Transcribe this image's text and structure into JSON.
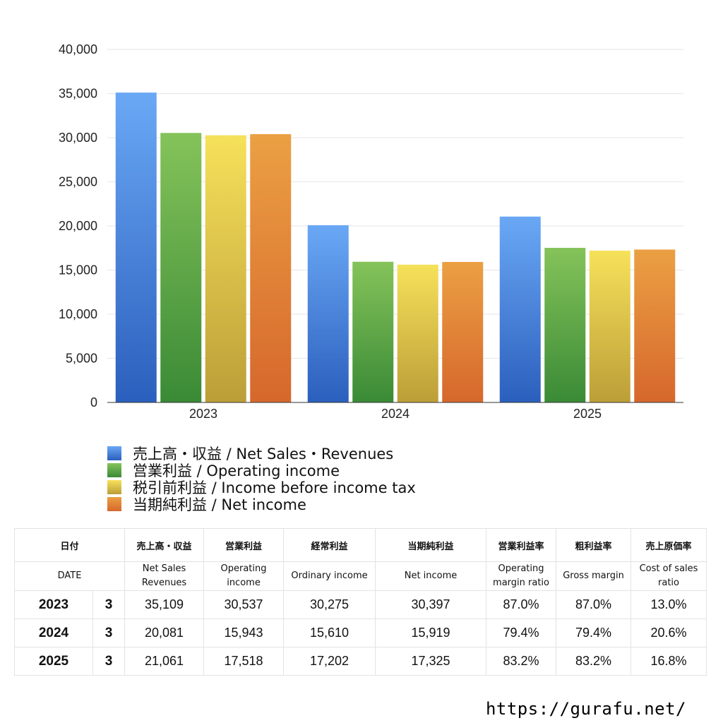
{
  "chart_data": {
    "type": "bar",
    "categories": [
      "2023",
      "2024",
      "2025"
    ],
    "series": [
      {
        "name": "売上高・収益 / Net Sales・Revenues",
        "values": [
          35109,
          20081,
          21061
        ],
        "color_top": "#6aa8f5",
        "color_bottom": "#2b5fbd"
      },
      {
        "name": "営業利益 / Operating income",
        "values": [
          30537,
          15943,
          17518
        ],
        "color_top": "#85c35a",
        "color_bottom": "#3a8a36"
      },
      {
        "name": "税引前利益 / Income before income tax",
        "values": [
          30275,
          15610,
          17202
        ],
        "color_top": "#f6e15a",
        "color_bottom": "#bc9e38"
      },
      {
        "name": "当期純利益 / Net income",
        "values": [
          30397,
          15919,
          17325
        ],
        "color_top": "#eba043",
        "color_bottom": "#d6672c"
      }
    ],
    "yticks": [
      "0",
      "5,000",
      "10,000",
      "15,000",
      "20,000",
      "25,000",
      "30,000",
      "35,000",
      "40,000"
    ],
    "ylim": [
      0,
      40000
    ],
    "grid": true,
    "legend_position": "bottom-left"
  },
  "table": {
    "header_jp": [
      "日付",
      "売上高・収益",
      "営業利益",
      "経常利益",
      "当期純利益",
      "営業利益率",
      "粗利益率",
      "売上原価率"
    ],
    "header_en": [
      "DATE",
      "Net Sales\nRevenues",
      "Operating\nincome",
      "Ordinary income",
      "Net income",
      "Operating\nmargin ratio",
      "Gross margin",
      "Cost of sales\nratio"
    ],
    "rows": [
      {
        "year": "2023",
        "month": "3",
        "cells": [
          "35,109",
          "30,537",
          "30,275",
          "30,397",
          "87.0%",
          "87.0%",
          "13.0%"
        ]
      },
      {
        "year": "2024",
        "month": "3",
        "cells": [
          "20,081",
          "15,943",
          "15,610",
          "15,919",
          "79.4%",
          "79.4%",
          "20.6%"
        ]
      },
      {
        "year": "2025",
        "month": "3",
        "cells": [
          "21,061",
          "17,518",
          "17,202",
          "17,325",
          "83.2%",
          "83.2%",
          "16.8%"
        ]
      }
    ]
  },
  "footer": {
    "url": "https://gurafu.net/"
  }
}
